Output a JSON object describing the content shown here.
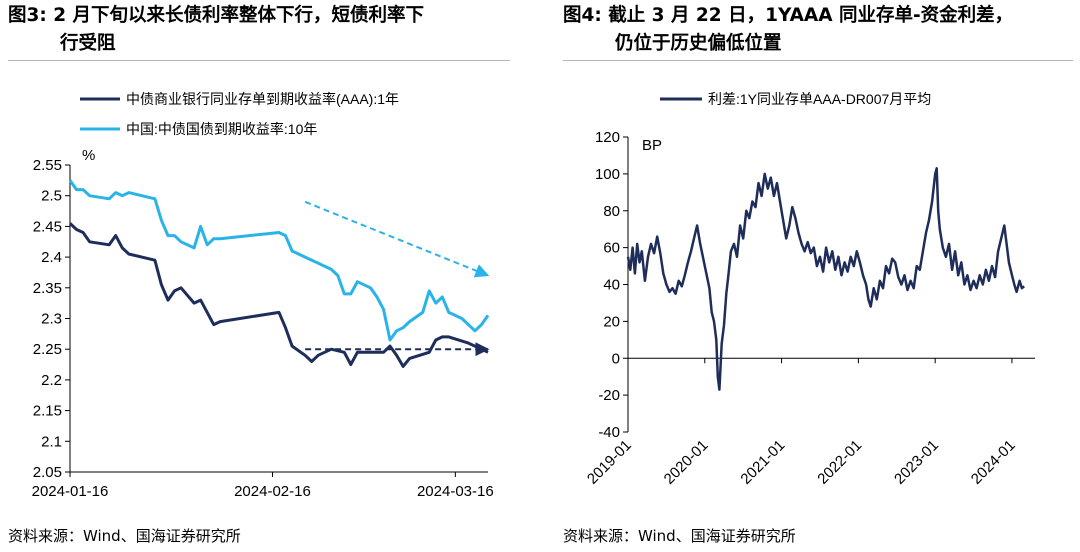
{
  "left_panel": {
    "title_line1": "图3:  2 月下旬以来长债利率整体下行，短债利率下",
    "title_line2": "行受阻",
    "source": "资料来源：Wind、国海证券研究所"
  },
  "right_panel": {
    "title_line1": "图4:  截止 3 月 22 日，1YAAA 同业存单-资金利差，",
    "title_line2": "仍位于历史偏低位置",
    "source": "资料来源：Wind、国海证券研究所"
  },
  "colors": {
    "dark_navy": "#1f2d5a",
    "light_blue": "#29b3e8",
    "axis": "#000000"
  },
  "chart_data": [
    {
      "type": "line",
      "unit_label": "%",
      "ylim": [
        2.05,
        2.55
      ],
      "yticks": [
        "2.55",
        "2.5",
        "2.45",
        "2.4",
        "2.35",
        "2.3",
        "2.25",
        "2.2",
        "2.15",
        "2.1",
        "2.05"
      ],
      "xlim": [
        0,
        64
      ],
      "xticks": [
        {
          "label": "2024-01-16",
          "x": 0
        },
        {
          "label": "2024-02-16",
          "x": 31
        },
        {
          "label": "2024-03-16",
          "x": 59
        }
      ],
      "series": [
        {
          "name": "中债商业银行同业存单到期收益率(AAA):1年",
          "color": "#1f2d5a",
          "points": [
            [
              0,
              2.455
            ],
            [
              1,
              2.445
            ],
            [
              2,
              2.44
            ],
            [
              3,
              2.425
            ],
            [
              6,
              2.42
            ],
            [
              7,
              2.435
            ],
            [
              8,
              2.415
            ],
            [
              9,
              2.405
            ],
            [
              13,
              2.395
            ],
            [
              14,
              2.355
            ],
            [
              15,
              2.33
            ],
            [
              16,
              2.345
            ],
            [
              17,
              2.35
            ],
            [
              19,
              2.325
            ],
            [
              20,
              2.33
            ],
            [
              22,
              2.29
            ],
            [
              23,
              2.295
            ],
            [
              32,
              2.31
            ],
            [
              33,
              2.285
            ],
            [
              34,
              2.255
            ],
            [
              36,
              2.24
            ],
            [
              37,
              2.23
            ],
            [
              38,
              2.24
            ],
            [
              40,
              2.25
            ],
            [
              42,
              2.245
            ],
            [
              43,
              2.225
            ],
            [
              44,
              2.245
            ],
            [
              48,
              2.245
            ],
            [
              49,
              2.255
            ],
            [
              50,
              2.24
            ],
            [
              51,
              2.222
            ],
            [
              52,
              2.235
            ],
            [
              55,
              2.245
            ],
            [
              56,
              2.265
            ],
            [
              57,
              2.27
            ],
            [
              58,
              2.27
            ],
            [
              61,
              2.26
            ],
            [
              62,
              2.255
            ],
            [
              63,
              2.25
            ],
            [
              64,
              2.245
            ]
          ]
        },
        {
          "name": "中国:中债国债到期收益率:10年",
          "color": "#29b3e8",
          "points": [
            [
              0,
              2.525
            ],
            [
              1,
              2.51
            ],
            [
              2,
              2.51
            ],
            [
              3,
              2.5
            ],
            [
              6,
              2.495
            ],
            [
              7,
              2.505
            ],
            [
              8,
              2.5
            ],
            [
              9,
              2.505
            ],
            [
              13,
              2.495
            ],
            [
              14,
              2.46
            ],
            [
              15,
              2.435
            ],
            [
              16,
              2.435
            ],
            [
              17,
              2.425
            ],
            [
              19,
              2.415
            ],
            [
              20,
              2.45
            ],
            [
              21,
              2.42
            ],
            [
              22,
              2.43
            ],
            [
              23,
              2.43
            ],
            [
              32,
              2.44
            ],
            [
              33,
              2.435
            ],
            [
              34,
              2.41
            ],
            [
              35,
              2.405
            ],
            [
              36,
              2.4
            ],
            [
              38,
              2.39
            ],
            [
              40,
              2.38
            ],
            [
              41,
              2.37
            ],
            [
              42,
              2.34
            ],
            [
              43,
              2.34
            ],
            [
              44,
              2.36
            ],
            [
              46,
              2.35
            ],
            [
              47,
              2.335
            ],
            [
              48,
              2.315
            ],
            [
              49,
              2.265
            ],
            [
              50,
              2.28
            ],
            [
              51,
              2.285
            ],
            [
              52,
              2.295
            ],
            [
              54,
              2.31
            ],
            [
              55,
              2.345
            ],
            [
              56,
              2.325
            ],
            [
              57,
              2.335
            ],
            [
              58,
              2.31
            ],
            [
              60,
              2.3
            ],
            [
              61,
              2.29
            ],
            [
              62,
              2.28
            ],
            [
              63,
              2.29
            ],
            [
              64,
              2.305
            ]
          ]
        }
      ],
      "annotations": [
        {
          "kind": "dashed_arrow",
          "color": "#29b3e8",
          "from": [
            36,
            2.49
          ],
          "to": [
            64,
            2.37
          ]
        },
        {
          "kind": "dashed_arrow",
          "color": "#1f2d5a",
          "from": [
            36,
            2.25
          ],
          "to": [
            64,
            2.25
          ]
        }
      ]
    },
    {
      "type": "line",
      "unit_label": "BP",
      "ylim": [
        -40,
        120
      ],
      "yticks": [
        "120",
        "100",
        "80",
        "60",
        "40",
        "20",
        "0",
        "-20",
        "-40"
      ],
      "xlim": [
        2019.0,
        2024.3
      ],
      "xticks": [
        {
          "label": "2019-01",
          "x": 2019.0
        },
        {
          "label": "2020-01",
          "x": 2020.0
        },
        {
          "label": "2021-01",
          "x": 2021.0
        },
        {
          "label": "2022-01",
          "x": 2022.0
        },
        {
          "label": "2023-01",
          "x": 2023.0
        },
        {
          "label": "2024-01",
          "x": 2024.0
        }
      ],
      "series": [
        {
          "name": "利差:1Y同业存单AAA-DR007月平均",
          "color": "#1f2d5a",
          "points": [
            [
              2019.0,
              55
            ],
            [
              2019.03,
              48
            ],
            [
              2019.06,
              60
            ],
            [
              2019.09,
              46
            ],
            [
              2019.12,
              62
            ],
            [
              2019.15,
              52
            ],
            [
              2019.18,
              58
            ],
            [
              2019.22,
              42
            ],
            [
              2019.26,
              55
            ],
            [
              2019.3,
              62
            ],
            [
              2019.34,
              57
            ],
            [
              2019.38,
              66
            ],
            [
              2019.42,
              57
            ],
            [
              2019.46,
              46
            ],
            [
              2019.5,
              40
            ],
            [
              2019.54,
              36
            ],
            [
              2019.58,
              38
            ],
            [
              2019.62,
              35
            ],
            [
              2019.66,
              42
            ],
            [
              2019.7,
              39
            ],
            [
              2019.74,
              45
            ],
            [
              2019.78,
              52
            ],
            [
              2019.82,
              58
            ],
            [
              2019.86,
              65
            ],
            [
              2019.9,
              72
            ],
            [
              2019.94,
              62
            ],
            [
              2019.97,
              56
            ],
            [
              2020.0,
              50
            ],
            [
              2020.03,
              44
            ],
            [
              2020.06,
              38
            ],
            [
              2020.09,
              25
            ],
            [
              2020.12,
              20
            ],
            [
              2020.15,
              10
            ],
            [
              2020.17,
              -10
            ],
            [
              2020.19,
              -17
            ],
            [
              2020.22,
              8
            ],
            [
              2020.25,
              18
            ],
            [
              2020.28,
              35
            ],
            [
              2020.31,
              46
            ],
            [
              2020.34,
              58
            ],
            [
              2020.38,
              62
            ],
            [
              2020.42,
              55
            ],
            [
              2020.46,
              72
            ],
            [
              2020.5,
              65
            ],
            [
              2020.54,
              80
            ],
            [
              2020.58,
              76
            ],
            [
              2020.62,
              85
            ],
            [
              2020.66,
              82
            ],
            [
              2020.7,
              95
            ],
            [
              2020.74,
              88
            ],
            [
              2020.78,
              100
            ],
            [
              2020.82,
              92
            ],
            [
              2020.86,
              98
            ],
            [
              2020.9,
              88
            ],
            [
              2020.94,
              95
            ],
            [
              2020.98,
              85
            ],
            [
              2021.02,
              75
            ],
            [
              2021.06,
              65
            ],
            [
              2021.1,
              72
            ],
            [
              2021.14,
              82
            ],
            [
              2021.18,
              76
            ],
            [
              2021.22,
              68
            ],
            [
              2021.26,
              62
            ],
            [
              2021.3,
              58
            ],
            [
              2021.34,
              63
            ],
            [
              2021.38,
              57
            ],
            [
              2021.42,
              60
            ],
            [
              2021.46,
              50
            ],
            [
              2021.5,
              55
            ],
            [
              2021.54,
              47
            ],
            [
              2021.58,
              60
            ],
            [
              2021.62,
              52
            ],
            [
              2021.66,
              58
            ],
            [
              2021.7,
              48
            ],
            [
              2021.74,
              55
            ],
            [
              2021.78,
              45
            ],
            [
              2021.82,
              52
            ],
            [
              2021.86,
              47
            ],
            [
              2021.9,
              55
            ],
            [
              2021.94,
              50
            ],
            [
              2021.98,
              58
            ],
            [
              2022.02,
              52
            ],
            [
              2022.06,
              45
            ],
            [
              2022.1,
              40
            ],
            [
              2022.13,
              32
            ],
            [
              2022.16,
              28
            ],
            [
              2022.2,
              38
            ],
            [
              2022.24,
              32
            ],
            [
              2022.28,
              42
            ],
            [
              2022.32,
              38
            ],
            [
              2022.36,
              50
            ],
            [
              2022.4,
              46
            ],
            [
              2022.44,
              54
            ],
            [
              2022.48,
              52
            ],
            [
              2022.52,
              44
            ],
            [
              2022.56,
              40
            ],
            [
              2022.6,
              45
            ],
            [
              2022.64,
              37
            ],
            [
              2022.68,
              42
            ],
            [
              2022.72,
              38
            ],
            [
              2022.76,
              50
            ],
            [
              2022.8,
              48
            ],
            [
              2022.84,
              58
            ],
            [
              2022.88,
              68
            ],
            [
              2022.92,
              75
            ],
            [
              2022.96,
              85
            ],
            [
              2023.0,
              100
            ],
            [
              2023.02,
              103
            ],
            [
              2023.04,
              80
            ],
            [
              2023.06,
              70
            ],
            [
              2023.1,
              60
            ],
            [
              2023.14,
              55
            ],
            [
              2023.18,
              62
            ],
            [
              2023.22,
              48
            ],
            [
              2023.26,
              58
            ],
            [
              2023.3,
              45
            ],
            [
              2023.34,
              52
            ],
            [
              2023.38,
              40
            ],
            [
              2023.42,
              45
            ],
            [
              2023.46,
              37
            ],
            [
              2023.5,
              42
            ],
            [
              2023.54,
              38
            ],
            [
              2023.58,
              45
            ],
            [
              2023.62,
              40
            ],
            [
              2023.66,
              48
            ],
            [
              2023.7,
              42
            ],
            [
              2023.74,
              50
            ],
            [
              2023.78,
              44
            ],
            [
              2023.82,
              58
            ],
            [
              2023.86,
              65
            ],
            [
              2023.9,
              72
            ],
            [
              2023.93,
              62
            ],
            [
              2023.96,
              52
            ],
            [
              2024.0,
              45
            ],
            [
              2024.03,
              40
            ],
            [
              2024.06,
              36
            ],
            [
              2024.1,
              42
            ],
            [
              2024.13,
              38
            ],
            [
              2024.16,
              39
            ]
          ]
        }
      ],
      "annotations": []
    }
  ]
}
